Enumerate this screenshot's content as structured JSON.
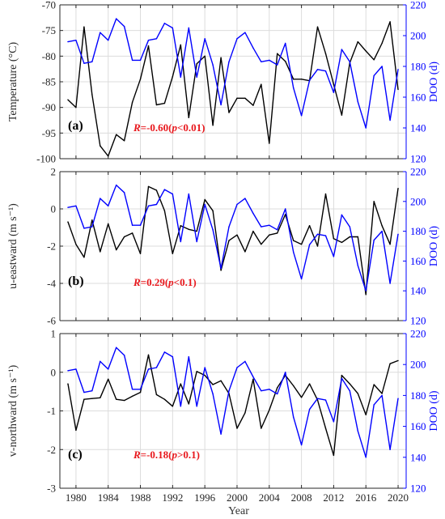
{
  "figure": {
    "xlabel": "Year",
    "right_ylabel": "DOO (d)",
    "left_color": "#000000",
    "right_color": "#0000ff",
    "annotation_color": "#e8181d",
    "x_ticks": [
      1980,
      1984,
      1988,
      1992,
      1996,
      2000,
      2004,
      2008,
      2012,
      2016,
      2020
    ],
    "x_range": [
      1978,
      2021
    ]
  },
  "chart_data": [
    {
      "type": "line",
      "panel_label": "(a)",
      "ylabel": "Temperature (°C)",
      "ylim": [
        -100,
        -70
      ],
      "yticks": [
        -100,
        -95,
        -90,
        -85,
        -80,
        -75,
        -70
      ],
      "y2label": "DOO (d)",
      "y2lim": [
        120,
        220
      ],
      "y2ticks": [
        120,
        140,
        160,
        180,
        200,
        220
      ],
      "grid": true,
      "annotation": {
        "r_part": "R",
        "value_part": "=-0.60(",
        "p_part": "p",
        "cond_part": "<0.01)"
      },
      "x": [
        1979,
        1980,
        1981,
        1982,
        1983,
        1984,
        1985,
        1986,
        1987,
        1988,
        1989,
        1990,
        1991,
        1992,
        1993,
        1994,
        1995,
        1996,
        1997,
        1998,
        1999,
        2000,
        2001,
        2002,
        2003,
        2004,
        2005,
        2006,
        2007,
        2008,
        2009,
        2010,
        2011,
        2012,
        2013,
        2014,
        2015,
        2016,
        2017,
        2018,
        2019,
        2020
      ],
      "series": [
        {
          "axis": "left",
          "color": "#000000",
          "values": [
            -88.5,
            -90,
            -74.3,
            -87.5,
            -97.5,
            -99.5,
            -95.3,
            -96.5,
            -89,
            -84.5,
            -78,
            -89.5,
            -89.2,
            -84,
            -77.8,
            -92,
            -81.5,
            -80,
            -93.5,
            -80.3,
            -91,
            -88.2,
            -88.2,
            -89.6,
            -85.5,
            -97,
            -79.5,
            -81,
            -84.5,
            -84.5,
            -84.8,
            -74.3,
            -79.5,
            -85.5,
            -91.5,
            -81.3,
            -77.2,
            -79,
            -80.7,
            -77.5,
            -73.3,
            -86.5
          ]
        },
        {
          "axis": "right",
          "color": "#0000ff",
          "values": [
            196,
            197,
            182,
            183,
            202,
            197,
            211,
            206,
            184,
            184,
            197,
            198,
            208,
            205,
            173,
            205,
            173,
            198,
            181,
            155,
            183,
            198,
            202,
            192,
            183,
            184,
            181,
            195,
            166,
            148,
            171,
            178,
            177,
            163,
            191,
            183,
            157,
            140,
            174,
            180,
            145,
            178
          ]
        }
      ]
    },
    {
      "type": "line",
      "panel_label": "(b)",
      "ylabel": "u-eastward (m s⁻¹)",
      "ylim": [
        -6,
        2
      ],
      "yticks": [
        -6,
        -4,
        -2,
        0,
        2
      ],
      "y2label": "DOO (d)",
      "y2lim": [
        120,
        220
      ],
      "y2ticks": [
        120,
        140,
        160,
        180,
        200,
        220
      ],
      "grid": true,
      "annotation": {
        "r_part": "R",
        "value_part": "=0.29(",
        "p_part": "p",
        "cond_part": "<0.1)"
      },
      "x": [
        1979,
        1980,
        1981,
        1982,
        1983,
        1984,
        1985,
        1986,
        1987,
        1988,
        1989,
        1990,
        1991,
        1992,
        1993,
        1994,
        1995,
        1996,
        1997,
        1998,
        1999,
        2000,
        2001,
        2002,
        2003,
        2004,
        2005,
        2006,
        2007,
        2008,
        2009,
        2010,
        2011,
        2012,
        2013,
        2014,
        2015,
        2016,
        2017,
        2018,
        2019,
        2020
      ],
      "series": [
        {
          "axis": "left",
          "color": "#000000",
          "values": [
            -0.7,
            -1.9,
            -2.6,
            -0.6,
            -2.3,
            -0.8,
            -2.2,
            -1.5,
            -1.3,
            -2.4,
            1.2,
            1.0,
            -0.1,
            -2.4,
            -0.9,
            -1.1,
            -1.2,
            0.5,
            -0.1,
            -3.3,
            -1.7,
            -1.4,
            -2.3,
            -1.2,
            -1.9,
            -1.4,
            -1.3,
            -0.3,
            -1.7,
            -1.9,
            -0.9,
            -2.0,
            0.8,
            -1.6,
            -1.8,
            -1.5,
            -1.5,
            -4.6,
            0.4,
            -0.9,
            -1.9,
            1.1
          ]
        },
        {
          "axis": "right",
          "color": "#0000ff",
          "values": [
            196,
            197,
            182,
            183,
            202,
            197,
            211,
            206,
            184,
            184,
            197,
            198,
            208,
            205,
            173,
            205,
            173,
            198,
            181,
            155,
            183,
            198,
            202,
            192,
            183,
            184,
            181,
            195,
            166,
            148,
            171,
            178,
            177,
            163,
            191,
            183,
            157,
            140,
            174,
            180,
            145,
            178
          ]
        }
      ]
    },
    {
      "type": "line",
      "panel_label": "(c)",
      "ylabel": "v-northward (m s⁻¹)",
      "ylim": [
        -3,
        1
      ],
      "yticks": [
        -3,
        -2,
        -1,
        0,
        1
      ],
      "y2label": "DOO (d)",
      "y2lim": [
        120,
        220
      ],
      "y2ticks": [
        120,
        140,
        160,
        180,
        200,
        220
      ],
      "grid": true,
      "annotation": {
        "r_part": "R",
        "value_part": "=-0.18(",
        "p_part": "p",
        "cond_part": ">0.1)"
      },
      "x": [
        1979,
        1980,
        1981,
        1982,
        1983,
        1984,
        1985,
        1986,
        1987,
        1988,
        1989,
        1990,
        1991,
        1992,
        1993,
        1994,
        1995,
        1996,
        1997,
        1998,
        1999,
        2000,
        2001,
        2002,
        2003,
        2004,
        2005,
        2006,
        2007,
        2008,
        2009,
        2010,
        2011,
        2012,
        2013,
        2014,
        2015,
        2016,
        2017,
        2018,
        2019,
        2020
      ],
      "series": [
        {
          "axis": "left",
          "color": "#000000",
          "values": [
            -0.3,
            -1.5,
            -0.7,
            -0.68,
            -0.66,
            -0.18,
            -0.7,
            -0.73,
            -0.62,
            -0.52,
            0.45,
            -0.58,
            -0.7,
            -0.88,
            -0.3,
            -0.82,
            0.02,
            -0.08,
            -0.32,
            -0.22,
            -0.55,
            -1.45,
            -1.05,
            -0.18,
            -1.45,
            -0.98,
            -0.4,
            -0.08,
            -0.35,
            -0.65,
            -0.3,
            -0.72,
            -1.45,
            -2.15,
            -0.08,
            -0.3,
            -0.55,
            -1.1,
            -0.32,
            -0.55,
            0.22,
            0.3
          ]
        },
        {
          "axis": "right",
          "color": "#0000ff",
          "values": [
            196,
            197,
            182,
            183,
            202,
            197,
            211,
            206,
            184,
            184,
            197,
            198,
            208,
            205,
            173,
            205,
            173,
            198,
            181,
            155,
            183,
            198,
            202,
            192,
            183,
            184,
            181,
            195,
            166,
            148,
            171,
            178,
            177,
            163,
            191,
            183,
            157,
            140,
            174,
            180,
            145,
            178
          ]
        }
      ]
    }
  ]
}
